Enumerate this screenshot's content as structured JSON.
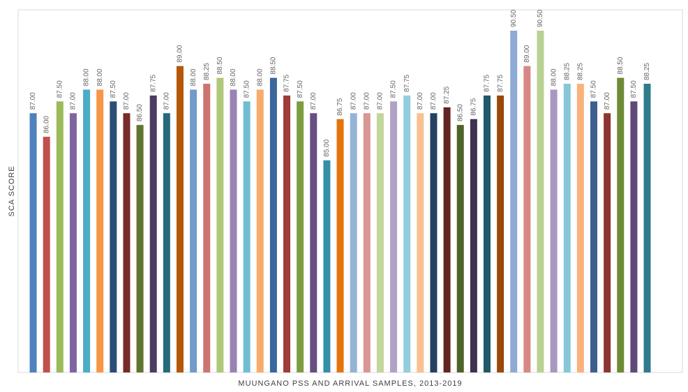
{
  "chart_data": {
    "type": "bar",
    "title": "",
    "xlabel": "MUUNGANO PSS AND ARRIVAL SAMPLES, 2013-2019",
    "ylabel": "SCA SCORE",
    "ylim": [
      76,
      92
    ],
    "grid": false,
    "legend": "none",
    "values": [
      87.0,
      86.0,
      87.5,
      87.0,
      88.0,
      88.0,
      87.5,
      87.0,
      86.5,
      87.75,
      87.0,
      89.0,
      88.0,
      88.25,
      88.5,
      88.0,
      87.5,
      88.0,
      88.5,
      87.75,
      87.5,
      87.0,
      85.0,
      86.75,
      87.0,
      87.0,
      87.0,
      87.5,
      87.75,
      87.0,
      87.0,
      87.25,
      86.5,
      86.75,
      87.75,
      87.75,
      90.5,
      89.0,
      90.5,
      88.0,
      88.25,
      88.25,
      87.5,
      87.0,
      88.5,
      87.5,
      88.25
    ],
    "labels": [
      "87.00",
      "86.00",
      "87.50",
      "87.00",
      "88.00",
      "88.00",
      "87.50",
      "87.00",
      "86.50",
      "87.75",
      "87.00",
      "89.00",
      "88.00",
      "88.25",
      "88.50",
      "88.00",
      "87.50",
      "88.00",
      "88.50",
      "87.75",
      "87.50",
      "87.00",
      "85.00",
      "86.75",
      "87.00",
      "87.00",
      "87.00",
      "87.50",
      "87.75",
      "87.00",
      "87.00",
      "87.25",
      "86.50",
      "86.75",
      "87.75",
      "87.75",
      "90.50",
      "89.00",
      "90.50",
      "88.00",
      "88.25",
      "88.25",
      "87.50",
      "87.00",
      "88.50",
      "87.50",
      "88.25"
    ],
    "colors": [
      "#4f81bd",
      "#c0504d",
      "#9bbb59",
      "#8064a2",
      "#4bacc6",
      "#f79646",
      "#2c4d75",
      "#772c2a",
      "#5f7530",
      "#4d3b62",
      "#276a7c",
      "#b65708",
      "#729aca",
      "#cd7371",
      "#afc97a",
      "#9983b5",
      "#6fbdd1",
      "#f9ab6b",
      "#3a679c",
      "#9f3b38",
      "#7e9c40",
      "#664f83",
      "#3490a6",
      "#e6730c",
      "#95b3d7",
      "#d99694",
      "#c3d69b",
      "#b2a1c7",
      "#93cddd",
      "#fac08f",
      "#254061",
      "#632523",
      "#4f6228",
      "#3f3151",
      "#215968",
      "#984807",
      "#8eaad6",
      "#d78786",
      "#b9d193",
      "#a897c3",
      "#85c7d8",
      "#fab27d",
      "#3d5f8f",
      "#8c3533",
      "#6d8a35",
      "#5e4979",
      "#2f7b8c"
    ]
  }
}
